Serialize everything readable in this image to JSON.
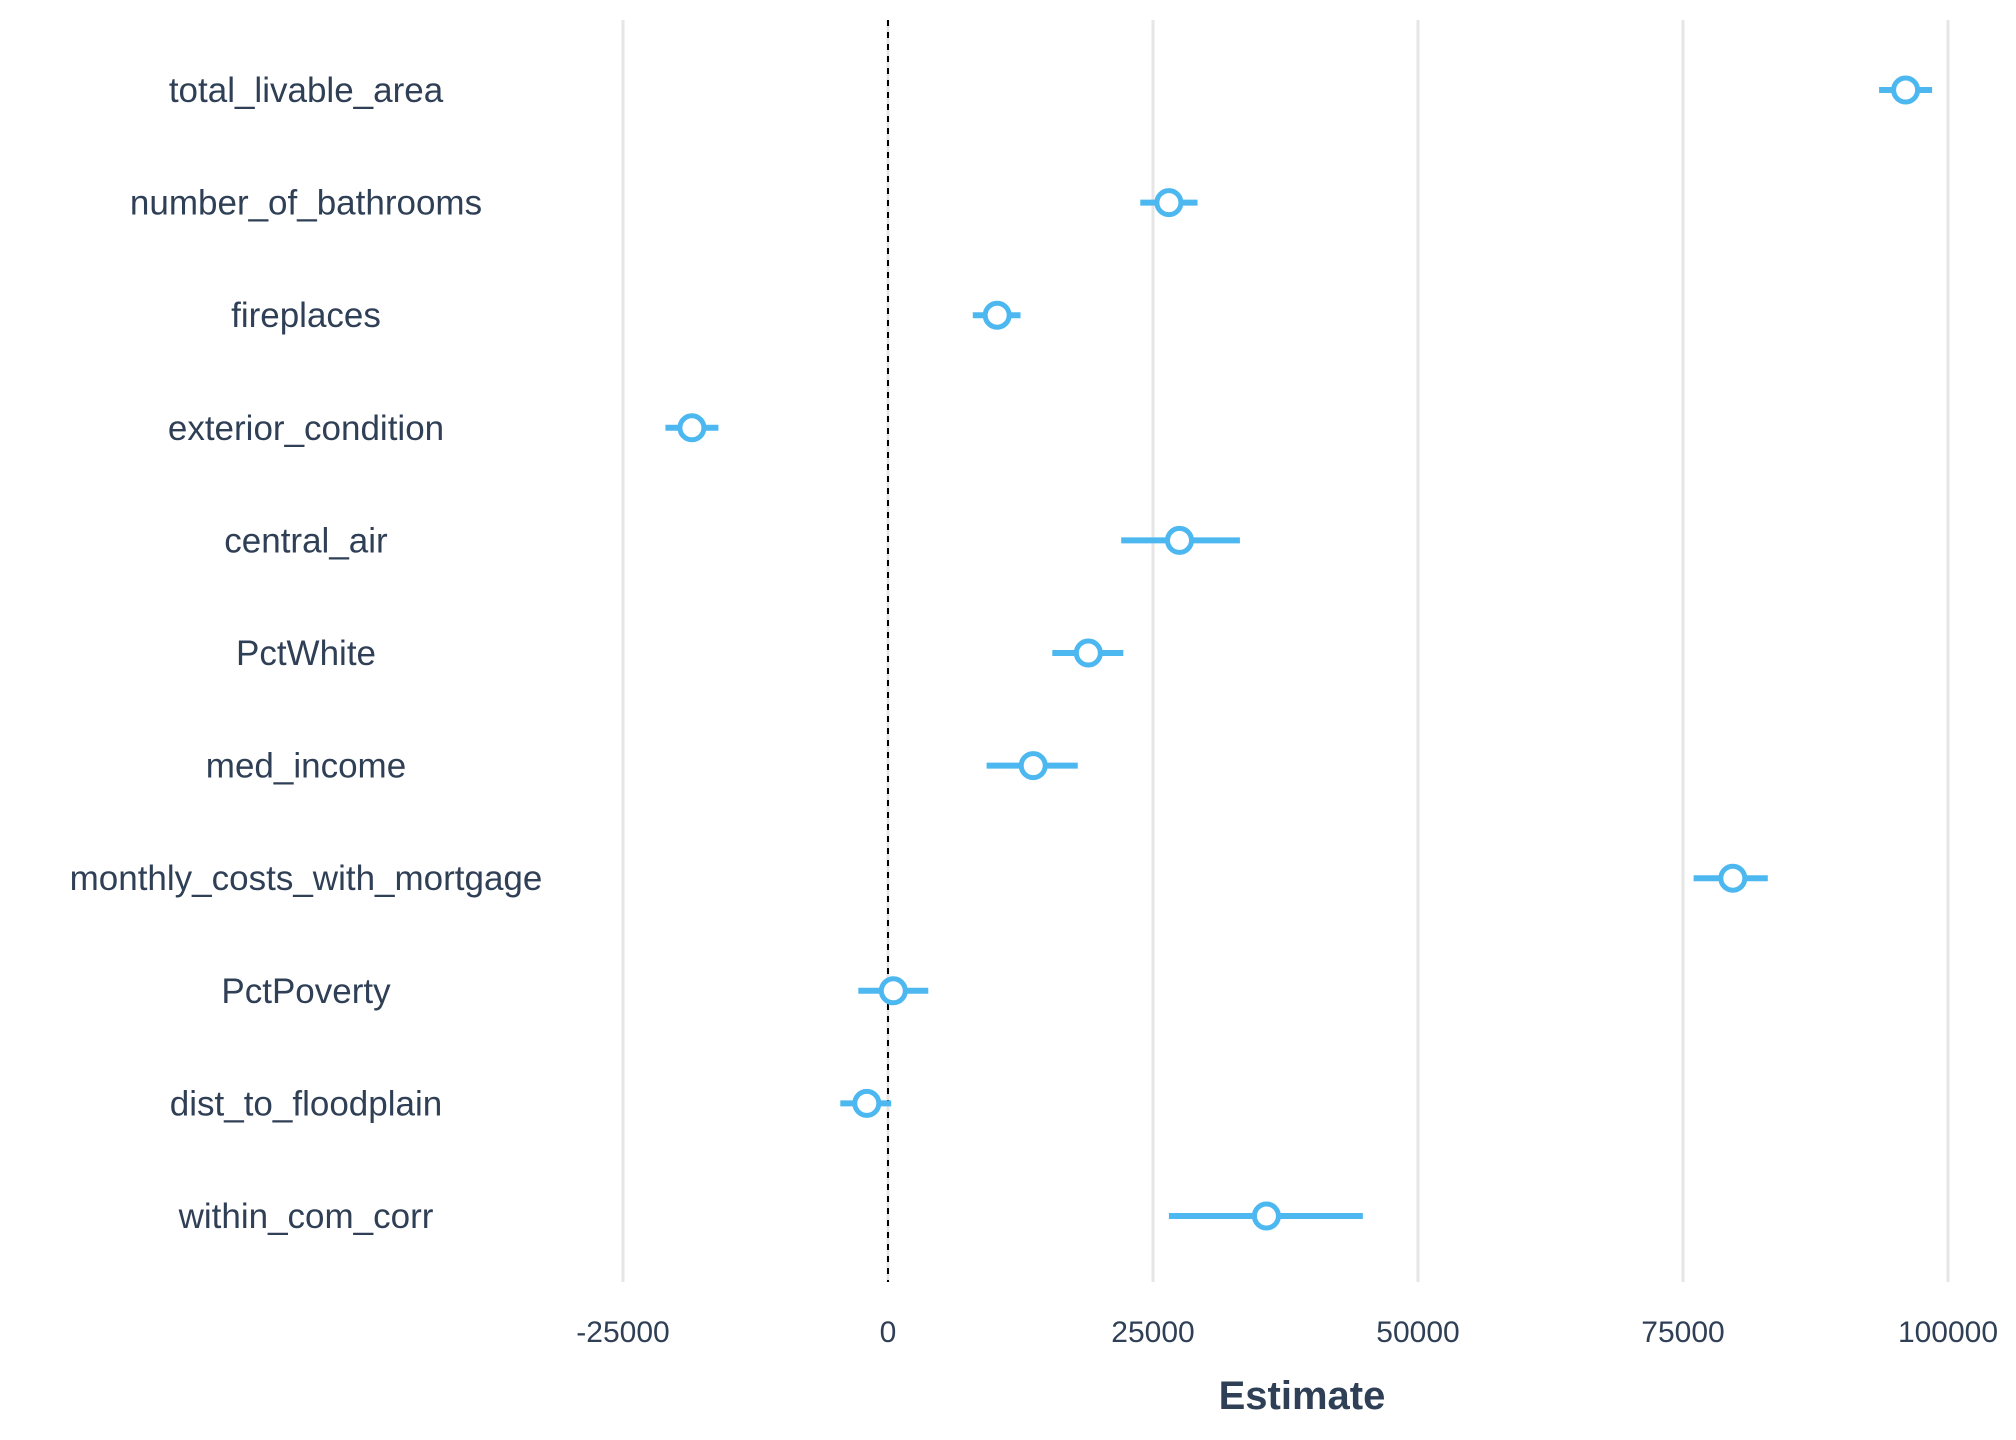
{
  "chart_data": {
    "type": "coefficient-plot",
    "title": "",
    "xlabel": "Estimate",
    "ylabel": "",
    "xlim": [
      -50000,
      102000
    ],
    "grid": "vertical major gridlines",
    "reference_line": {
      "x": 0,
      "style": "dashed"
    },
    "x_ticks": [
      -25000,
      0,
      25000,
      50000,
      75000,
      100000
    ],
    "x_tick_labels": [
      "-25000",
      "0",
      "25000",
      "50000",
      "75000",
      "100000"
    ],
    "categories": [
      "total_livable_area",
      "number_of_bathrooms",
      "fireplaces",
      "exterior_condition",
      "central_air",
      "PctWhite",
      "med_income",
      "monthly_costs_with_mortgage",
      "PctPoverty",
      "dist_to_floodplain",
      "within_com_corr"
    ],
    "estimates": [
      96000,
      26500,
      10300,
      -18500,
      27500,
      18900,
      13700,
      79700,
      500,
      -2000,
      35700
    ],
    "lower": [
      93500,
      23800,
      8000,
      -21000,
      22000,
      15500,
      9300,
      76000,
      -2800,
      -4500,
      26500
    ],
    "upper": [
      98500,
      29200,
      12500,
      -16000,
      33200,
      22200,
      17900,
      83000,
      3800,
      300,
      44800
    ],
    "colors": {
      "point_stroke": "#4db8f0",
      "point_fill": "#ffffff",
      "interval": "#4db8f0",
      "grid": "#e6e6e6",
      "reference_line": "#000000",
      "text": "#2f3f55"
    }
  }
}
